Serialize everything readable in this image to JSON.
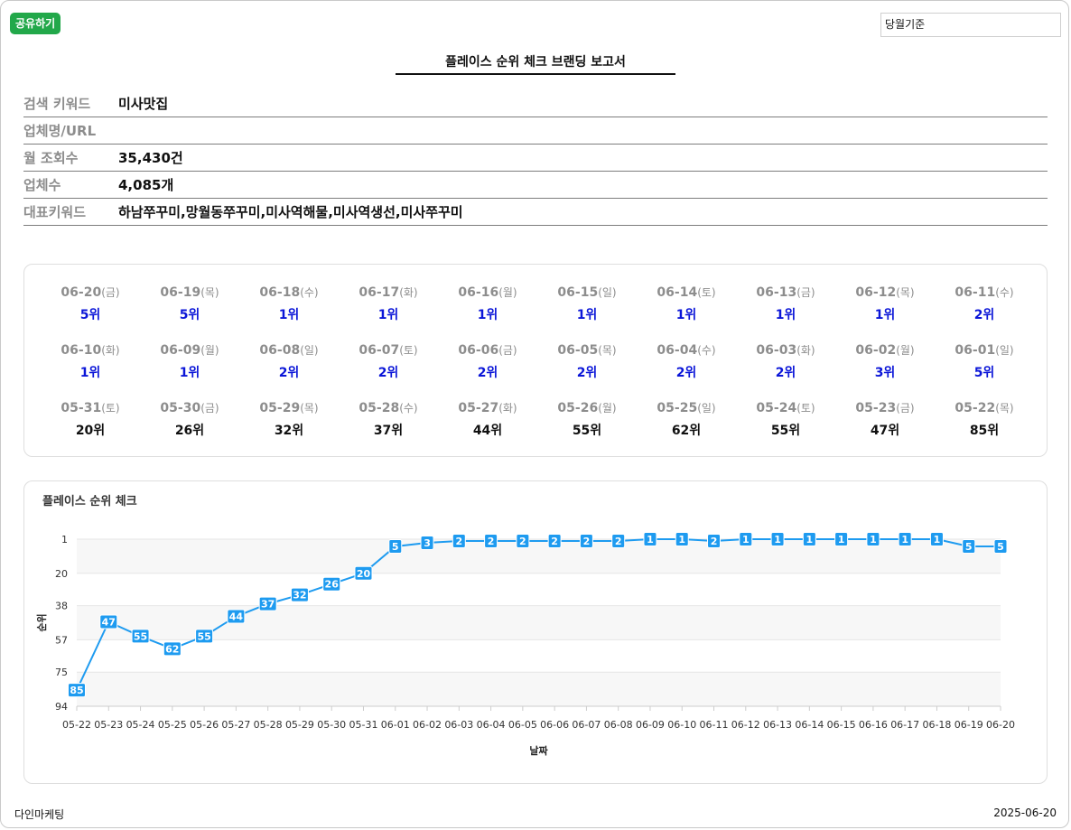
{
  "toolbar": {
    "share_label": "공유하기",
    "basis_value": "당월기준",
    "share_color": "#22a84a"
  },
  "report": {
    "title": "플레이스 순위 체크 브랜딩 보고서"
  },
  "info": {
    "keyword_label": "검색 키워드",
    "keyword_value": "미사맛집",
    "business_label": "업체명/URL",
    "business_value": "",
    "views_label": "월 조회수",
    "views_value": "35,430건",
    "count_label": "업체수",
    "count_value": "4,085개",
    "rep_label": "대표키워드",
    "rep_value": "하남쭈꾸미,망월동쭈꾸미,미사역해물,미사역생선,미사쭈꾸미"
  },
  "ranks": [
    {
      "date": "06-20",
      "dow": "(금)",
      "rank": "5위",
      "top": true
    },
    {
      "date": "06-19",
      "dow": "(목)",
      "rank": "5위",
      "top": true
    },
    {
      "date": "06-18",
      "dow": "(수)",
      "rank": "1위",
      "top": true
    },
    {
      "date": "06-17",
      "dow": "(화)",
      "rank": "1위",
      "top": true
    },
    {
      "date": "06-16",
      "dow": "(월)",
      "rank": "1위",
      "top": true
    },
    {
      "date": "06-15",
      "dow": "(일)",
      "rank": "1위",
      "top": true
    },
    {
      "date": "06-14",
      "dow": "(토)",
      "rank": "1위",
      "top": true
    },
    {
      "date": "06-13",
      "dow": "(금)",
      "rank": "1위",
      "top": true
    },
    {
      "date": "06-12",
      "dow": "(목)",
      "rank": "1위",
      "top": true
    },
    {
      "date": "06-11",
      "dow": "(수)",
      "rank": "2위",
      "top": true
    },
    {
      "date": "06-10",
      "dow": "(화)",
      "rank": "1위",
      "top": true
    },
    {
      "date": "06-09",
      "dow": "(월)",
      "rank": "1위",
      "top": true
    },
    {
      "date": "06-08",
      "dow": "(일)",
      "rank": "2위",
      "top": true
    },
    {
      "date": "06-07",
      "dow": "(토)",
      "rank": "2위",
      "top": true
    },
    {
      "date": "06-06",
      "dow": "(금)",
      "rank": "2위",
      "top": true
    },
    {
      "date": "06-05",
      "dow": "(목)",
      "rank": "2위",
      "top": true
    },
    {
      "date": "06-04",
      "dow": "(수)",
      "rank": "2위",
      "top": true
    },
    {
      "date": "06-03",
      "dow": "(화)",
      "rank": "2위",
      "top": true
    },
    {
      "date": "06-02",
      "dow": "(월)",
      "rank": "3위",
      "top": true
    },
    {
      "date": "06-01",
      "dow": "(일)",
      "rank": "5위",
      "top": true
    },
    {
      "date": "05-31",
      "dow": "(토)",
      "rank": "20위",
      "top": false
    },
    {
      "date": "05-30",
      "dow": "(금)",
      "rank": "26위",
      "top": false
    },
    {
      "date": "05-29",
      "dow": "(목)",
      "rank": "32위",
      "top": false
    },
    {
      "date": "05-28",
      "dow": "(수)",
      "rank": "37위",
      "top": false
    },
    {
      "date": "05-27",
      "dow": "(화)",
      "rank": "44위",
      "top": false
    },
    {
      "date": "05-26",
      "dow": "(월)",
      "rank": "55위",
      "top": false
    },
    {
      "date": "05-25",
      "dow": "(일)",
      "rank": "62위",
      "top": false
    },
    {
      "date": "05-24",
      "dow": "(토)",
      "rank": "55위",
      "top": false
    },
    {
      "date": "05-23",
      "dow": "(금)",
      "rank": "47위",
      "top": false
    },
    {
      "date": "05-22",
      "dow": "(목)",
      "rank": "85위",
      "top": false
    }
  ],
  "colors": {
    "rank_top": "#0b16d8",
    "rank_low": "#111111",
    "line": "#1e9bf0"
  },
  "chart_data": {
    "type": "line",
    "title": "플레이스 순위 체크",
    "xlabel": "날짜",
    "ylabel": "순위",
    "categories": [
      "05-22",
      "05-23",
      "05-24",
      "05-25",
      "05-26",
      "05-27",
      "05-28",
      "05-29",
      "05-30",
      "05-31",
      "06-01",
      "06-02",
      "06-03",
      "06-04",
      "06-05",
      "06-06",
      "06-07",
      "06-08",
      "06-09",
      "06-10",
      "06-11",
      "06-12",
      "06-13",
      "06-14",
      "06-15",
      "06-16",
      "06-17",
      "06-18",
      "06-19",
      "06-20"
    ],
    "values": [
      85,
      47,
      55,
      62,
      55,
      44,
      37,
      32,
      26,
      20,
      5,
      3,
      2,
      2,
      2,
      2,
      2,
      2,
      1,
      1,
      2,
      1,
      1,
      1,
      1,
      1,
      1,
      1,
      5,
      5
    ],
    "yticks": [
      1,
      20,
      38,
      57,
      75,
      94
    ],
    "ylim": [
      1,
      94
    ],
    "y_reversed": true,
    "grid": true,
    "color": "#1e9bf0"
  },
  "footer": {
    "company": "다인마케팅",
    "date": "2025-06-20"
  }
}
